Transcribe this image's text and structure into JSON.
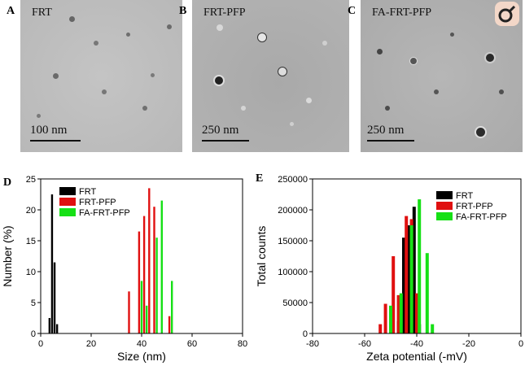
{
  "panels": {
    "A": {
      "letter": "A",
      "label": "FRT",
      "scale": "100 nm"
    },
    "B": {
      "letter": "B",
      "label": "FRT-PFP",
      "scale": "250 nm"
    },
    "C": {
      "letter": "C",
      "label": "FA-FRT-PFP",
      "scale": "250 nm"
    },
    "D": {
      "letter": "D"
    },
    "E": {
      "letter": "E"
    }
  },
  "colors": {
    "FRT": "#000000",
    "FRT-PFP": "#e01010",
    "FA-FRT-PFP": "#16e016"
  },
  "chart_data": [
    {
      "type": "bar",
      "xlabel": "Size (nm)",
      "ylabel": "Number (%)",
      "xlim": [
        0,
        80
      ],
      "ylim": [
        0,
        25
      ],
      "xticks": [
        "0",
        "20",
        "40",
        "60",
        "80"
      ],
      "yticks": [
        "0",
        "5",
        "10",
        "15",
        "20",
        "25"
      ],
      "legend_position": "top-left",
      "series": [
        {
          "name": "FRT",
          "x": [
            3.5,
            4.5,
            5.5,
            6.5
          ],
          "values": [
            2.5,
            22.5,
            11.5,
            1.5
          ]
        },
        {
          "name": "FRT-PFP",
          "x": [
            35,
            39,
            41,
            43,
            45,
            51
          ],
          "values": [
            6.8,
            16.5,
            19.0,
            23.5,
            20.5,
            2.8
          ]
        },
        {
          "name": "FA-FRT-PFP",
          "x": [
            40,
            42,
            46,
            48,
            52
          ],
          "values": [
            8.5,
            4.5,
            15.5,
            21.5,
            8.5
          ]
        }
      ]
    },
    {
      "type": "bar",
      "xlabel": "Zeta potential (-mV)",
      "ylabel": "Total counts",
      "xlim": [
        -80,
        0
      ],
      "ylim": [
        0,
        250000
      ],
      "xticks": [
        "-80",
        "-60",
        "-40",
        "-20",
        "0"
      ],
      "yticks": [
        "0",
        "50000",
        "100000",
        "150000",
        "200000",
        "250000"
      ],
      "legend_position": "top-right",
      "series": [
        {
          "name": "FRT",
          "x": [
            -47,
            -45,
            -43,
            -41,
            -39
          ],
          "values": [
            20000,
            155000,
            175000,
            205000,
            15000
          ]
        },
        {
          "name": "FRT-PFP",
          "x": [
            -54,
            -52,
            -49,
            -47,
            -44,
            -42,
            -40
          ],
          "values": [
            15000,
            48000,
            125000,
            62000,
            190000,
            185000,
            65000
          ]
        },
        {
          "name": "FA-FRT-PFP",
          "x": [
            -50,
            -46,
            -42,
            -39,
            -36,
            -34
          ],
          "values": [
            45000,
            65000,
            175000,
            217000,
            130000,
            15000
          ]
        }
      ]
    }
  ]
}
